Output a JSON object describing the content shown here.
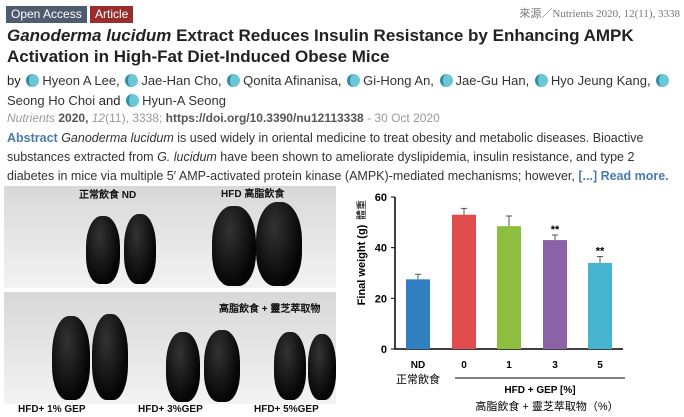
{
  "badges": {
    "open_access": "Open Access",
    "article": "Article"
  },
  "source": "來源／Nutrients 2020, 12(11), 3338",
  "colors": {
    "open_access": "#4f5b6e",
    "article": "#9b2c2c",
    "link": "#4a7bb0"
  },
  "title": {
    "italic": "Ganoderma lucidum",
    "rest": " Extract Reduces Insulin Resistance by Enhancing AMPK Activation in High-Fat Diet-Induced Obese Mice"
  },
  "authors": {
    "by": "by",
    "names": [
      "Hyeon A Lee",
      "Jae-Han Cho",
      "Qonita Afinanisa",
      "Gi-Hong An",
      "Jae-Gu Han",
      "Hyo Jeung Kang",
      "Seong Ho Choi",
      "Hyun-A Seong"
    ],
    "and": "and"
  },
  "citation": {
    "journal": "Nutrients",
    "year": "2020,",
    "volume": "12",
    "issue": "(11),",
    "article": "3338;",
    "doi": "https://doi.org/10.3390/nu12113338",
    "date": "- 30 Oct 2020"
  },
  "abstract": {
    "label": "Abstract",
    "italic1": "Ganoderma lucidum",
    "text1": " is used widely in oriental medicine to treat obesity and metabolic diseases. Bioactive substances extracted from ",
    "italic2": "G. lucidum",
    "text2": " have been shown to ameliorate dyslipidemia, insulin resistance, and type 2 diabetes in mice via multiple 5′ AMP-activated protein kinase (AMPK)-mediated mechanisms; however, ",
    "more": "[...] Read more."
  },
  "photos": {
    "nd": "正常飲食 ND",
    "hfd": "HFD 高脂飲食",
    "gep": "高脂飲食 + 靈芝萃取物",
    "gep1": "HFD+ 1% GEP",
    "gep3": "HFD+ 3%GEP",
    "gep5": "HFD+ 5%GEP"
  },
  "chart_data": {
    "type": "bar",
    "categories": [
      "ND",
      "0",
      "1",
      "3",
      "5"
    ],
    "values": [
      27.5,
      53,
      48.5,
      43,
      34
    ],
    "errors": [
      2,
      2.5,
      4,
      2,
      2.5
    ],
    "significance": [
      "",
      "",
      "",
      "**",
      "**"
    ],
    "colors": [
      "#2f7fc1",
      "#e04b4b",
      "#8cbf3f",
      "#8b62a8",
      "#46b3cf"
    ],
    "ylabel": "Final weight (g)",
    "ylabel_zh": "體重",
    "ylim": [
      0,
      60
    ],
    "yticks": [
      0,
      20,
      40,
      60
    ],
    "nd_label_zh": "正常飲食",
    "group_label": "HFD + GEP [%]",
    "group_label_zh": "高脂飲食 + 靈芝萃取物（%）"
  }
}
